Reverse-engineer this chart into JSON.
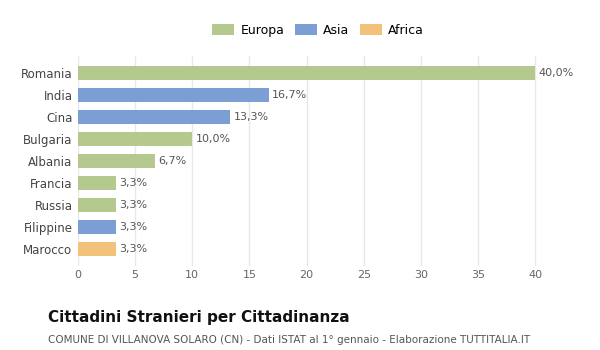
{
  "categories": [
    "Marocco",
    "Filippine",
    "Russia",
    "Francia",
    "Albania",
    "Bulgaria",
    "Cina",
    "India",
    "Romania"
  ],
  "values": [
    3.3,
    3.3,
    3.3,
    3.3,
    6.7,
    10.0,
    13.3,
    16.7,
    40.0
  ],
  "colors": [
    "#f2c27a",
    "#7b9fd4",
    "#b5c98e",
    "#b5c98e",
    "#b5c98e",
    "#b5c98e",
    "#7b9fd4",
    "#7b9fd4",
    "#b5c98e"
  ],
  "labels": [
    "3,3%",
    "3,3%",
    "3,3%",
    "3,3%",
    "6,7%",
    "10,0%",
    "13,3%",
    "16,7%",
    "40,0%"
  ],
  "legend_labels": [
    "Europa",
    "Asia",
    "Africa"
  ],
  "legend_colors": [
    "#b5c98e",
    "#7b9fd4",
    "#f2c27a"
  ],
  "xlim": [
    0,
    42
  ],
  "xticks": [
    0,
    5,
    10,
    15,
    20,
    25,
    30,
    35,
    40
  ],
  "title": "Cittadini Stranieri per Cittadinanza",
  "subtitle": "COMUNE DI VILLANOVA SOLARO (CN) - Dati ISTAT al 1° gennaio - Elaborazione TUTTITALIA.IT",
  "bg_color": "#ffffff",
  "grid_color": "#e8e8e8",
  "bar_label_fontsize": 8,
  "title_fontsize": 11,
  "subtitle_fontsize": 7.5,
  "ytick_fontsize": 8.5,
  "xtick_fontsize": 8,
  "bar_height": 0.65
}
